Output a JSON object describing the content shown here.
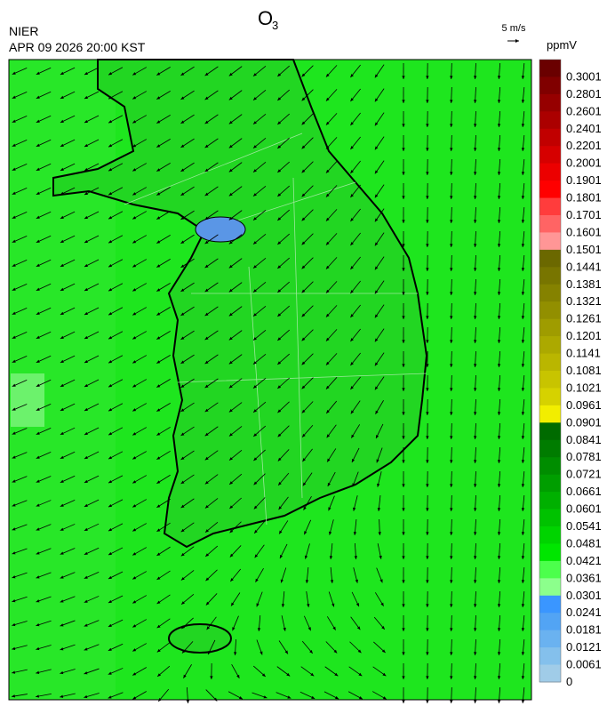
{
  "header": {
    "title": "O",
    "title_subscript": "3",
    "source": "NIER",
    "timestamp": "APR 09 2026 20:00 KST",
    "wind_scale_label": "5 m/s"
  },
  "colorbar": {
    "unit": "ppmV",
    "labels": [
      "0.3001",
      "0.2801",
      "0.2601",
      "0.2401",
      "0.2201",
      "0.2001",
      "0.1901",
      "0.1801",
      "0.1701",
      "0.1601",
      "0.1501",
      "0.1441",
      "0.1381",
      "0.1321",
      "0.1261",
      "0.1201",
      "0.1141",
      "0.1081",
      "0.1021",
      "0.0961",
      "0.0901",
      "0.0841",
      "0.0781",
      "0.0721",
      "0.0661",
      "0.0601",
      "0.0541",
      "0.0481",
      "0.0421",
      "0.0361",
      "0.0301",
      "0.0241",
      "0.0181",
      "0.0121",
      "0.0061",
      "0"
    ],
    "colors": [
      "#6a0000",
      "#800000",
      "#960000",
      "#ab0000",
      "#c10000",
      "#d60000",
      "#ec0000",
      "#ff0000",
      "#ff3c3c",
      "#ff6464",
      "#ff9696",
      "#6b6800",
      "#787500",
      "#858200",
      "#928f00",
      "#9f9c00",
      "#aca900",
      "#bab600",
      "#c8c400",
      "#d6d200",
      "#f2ee00",
      "#006b00",
      "#007c00",
      "#008d00",
      "#009e00",
      "#00b000",
      "#00c200",
      "#00d400",
      "#00e600",
      "#4cff4c",
      "#8cff8c",
      "#3a96ff",
      "#52a4f4",
      "#6ab2f0",
      "#84c0ec",
      "#a0cce8"
    ]
  }
}
